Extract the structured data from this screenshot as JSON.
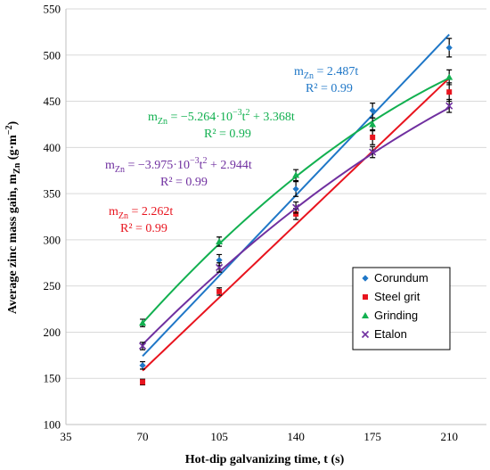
{
  "chart_data": {
    "type": "scatter",
    "xlabel": "Hot-dip galvanizing time, t (s)",
    "ylabel": "Average zinc mass gain, m",
    "ylabel_sub": "Zn",
    "ylabel_unit_open": " (g·m",
    "ylabel_unit_sup": "−2",
    "ylabel_unit_close": ")",
    "xlim": [
      35,
      227
    ],
    "ylim": [
      100,
      550
    ],
    "xticks": [
      35,
      70,
      105,
      140,
      175,
      210
    ],
    "yticks": [
      100,
      150,
      200,
      250,
      300,
      350,
      400,
      450,
      500,
      550
    ],
    "grid": "horizontal",
    "legend_position": "right",
    "series": [
      {
        "name": "Corundum",
        "color": "#1f77c7",
        "marker": "diamond",
        "x": [
          70,
          105,
          140,
          175,
          210
        ],
        "y": [
          164,
          278,
          355,
          440,
          508
        ],
        "err": [
          4,
          6,
          8,
          8,
          10
        ],
        "fit": {
          "a": 0,
          "b": 2.487
        },
        "equation": {
          "line1": {
            "m": "m",
            "sub": "Zn",
            "rest": " = 2.487t"
          },
          "line2": "R² = 0.99"
        }
      },
      {
        "name": "Steel grit",
        "color": "#e8141e",
        "marker": "square",
        "x": [
          70,
          105,
          140,
          175,
          210
        ],
        "y": [
          146,
          244,
          328,
          411,
          460
        ],
        "err": [
          3,
          4,
          6,
          8,
          10
        ],
        "fit": {
          "a": 0,
          "b": 2.262
        },
        "equation": {
          "line1": {
            "m": "m",
            "sub": "Zn",
            "rest": " = 2.262t"
          },
          "line2": "R² = 0.99"
        }
      },
      {
        "name": "Grinding",
        "color": "#12b050",
        "marker": "triangle",
        "x": [
          70,
          105,
          140,
          175,
          210
        ],
        "y": [
          210,
          298,
          370,
          425,
          476
        ],
        "err": [
          4,
          5,
          6,
          7,
          8
        ],
        "fit": {
          "a": -0.005264,
          "b": 3.368
        },
        "equation": {
          "line1": {
            "m": "m",
            "sub": "Zn",
            "rest_a": " = −5.264·10",
            "sup": "−3",
            "rest_b": "t",
            "sup2": "2",
            "rest_c": " + 3.368t"
          },
          "line2": "R² = 0.99"
        }
      },
      {
        "name": "Etalon",
        "color": "#7030a0",
        "marker": "x",
        "x": [
          70,
          105,
          140,
          175,
          210
        ],
        "y": [
          185,
          270,
          335,
          395,
          445
        ],
        "err": [
          4,
          5,
          6,
          6,
          7
        ],
        "fit": {
          "a": -0.003975,
          "b": 2.944
        },
        "equation": {
          "line1": {
            "m": "m",
            "sub": "Zn",
            "rest_a": " = −3.975·10",
            "sup": "−3",
            "rest_b": "t",
            "sup2": "2",
            "rest_c": " + 2.944t"
          },
          "line2": "R² = 0.99"
        }
      }
    ]
  }
}
